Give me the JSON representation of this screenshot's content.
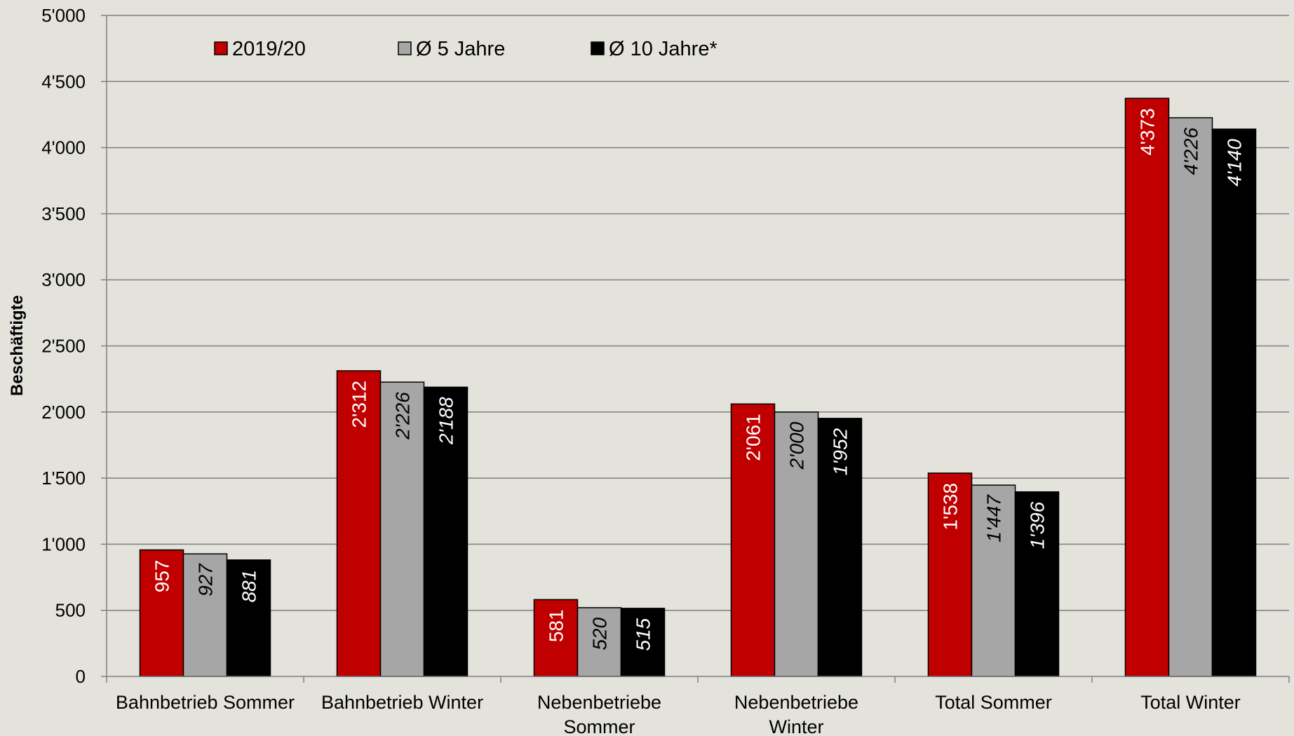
{
  "chart_data": {
    "type": "bar",
    "title": "",
    "xlabel": "",
    "ylabel": "Beschäftigte",
    "ylim": [
      0,
      5000
    ],
    "ytick_step": 500,
    "ytick_labels": [
      "0",
      "500",
      "1'000",
      "1'500",
      "2'000",
      "2'500",
      "3'000",
      "3'500",
      "4'000",
      "4'500",
      "5'000"
    ],
    "grid": true,
    "legend_position": "top-left",
    "categories": [
      [
        "Bahnbetrieb Sommer"
      ],
      [
        "Bahnbetrieb Winter"
      ],
      [
        "Nebenbetriebe",
        "Sommer"
      ],
      [
        "Nebenbetriebe",
        "Winter"
      ],
      [
        "Total Sommer"
      ],
      [
        "Total Winter"
      ]
    ],
    "series": [
      {
        "name": "2019/20",
        "color": "#c00000",
        "label_color": "#ffffff",
        "values": [
          957,
          2312,
          581,
          2061,
          1538,
          4373
        ],
        "labels": [
          "957",
          "2'312",
          "581",
          "2'061",
          "1'538",
          "4'373"
        ]
      },
      {
        "name": "Ø 5 Jahre",
        "color": "#a6a6a6",
        "label_color": "#000000",
        "values": [
          927,
          2226,
          520,
          2000,
          1447,
          4226
        ],
        "labels": [
          "927",
          "2'226",
          "520",
          "2'000",
          "1'447",
          "4'226"
        ]
      },
      {
        "name": "Ø 10 Jahre*",
        "color": "#000000",
        "label_color": "#ffffff",
        "values": [
          881,
          2188,
          515,
          1952,
          1396,
          4140
        ],
        "labels": [
          "881",
          "2'188",
          "515",
          "1'952",
          "1'396",
          "4'140"
        ]
      }
    ]
  }
}
